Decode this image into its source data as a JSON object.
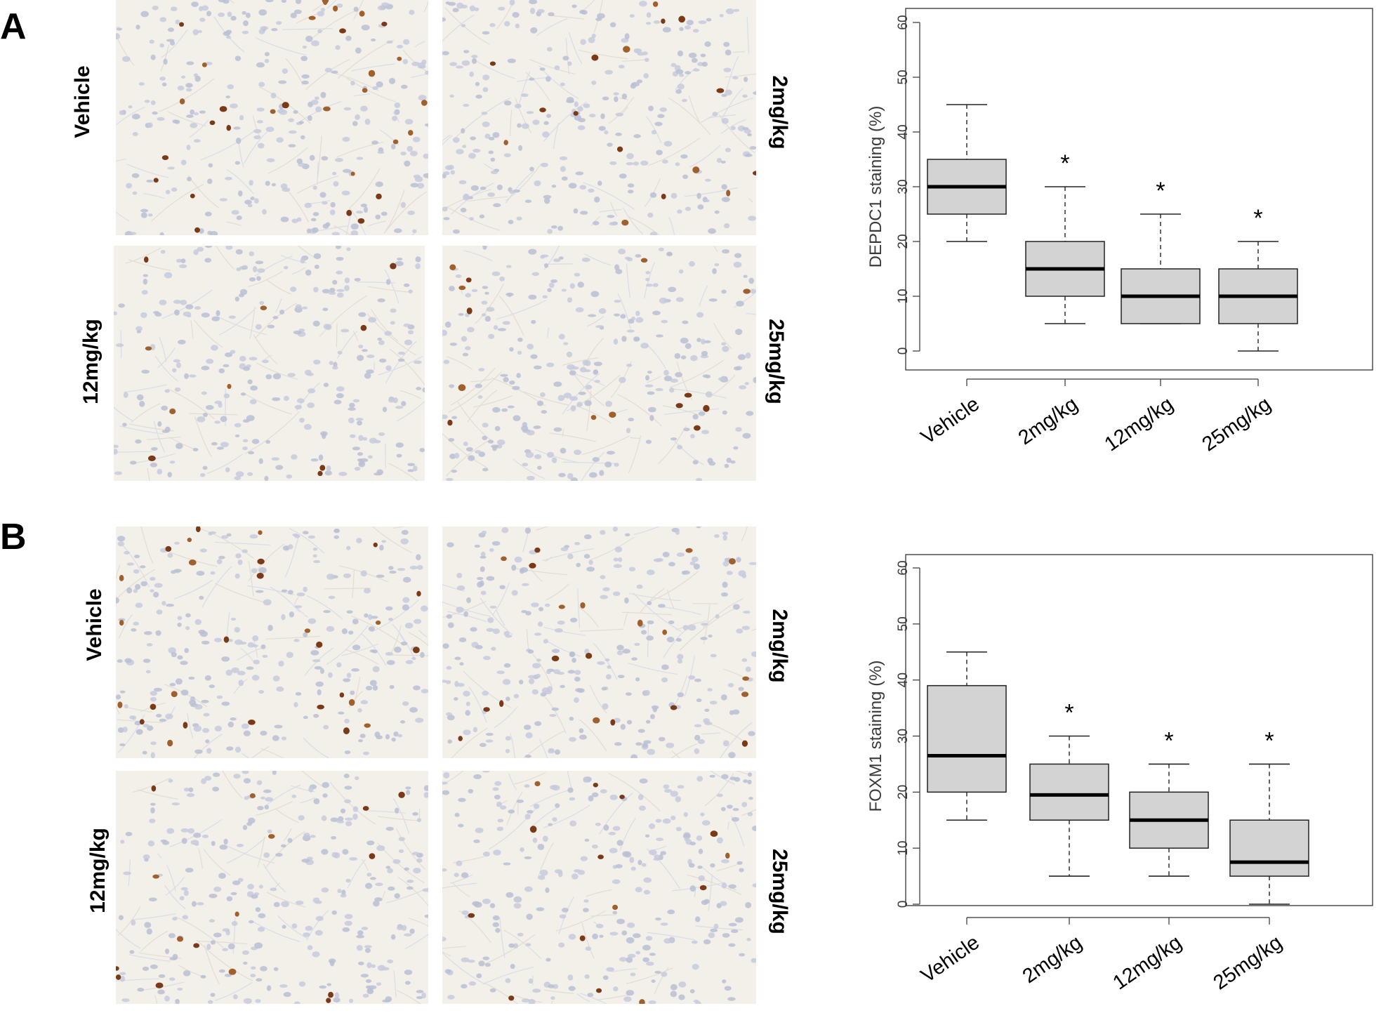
{
  "panels": [
    {
      "letter": "A",
      "image_labels": [
        "Vehicle",
        "2mg/kg",
        "12mg/kg",
        "25mg/kg"
      ],
      "chart_data": {
        "type": "box",
        "title": "",
        "xlabel": "",
        "ylabel": "DEPDC1 staining (%)",
        "ylim": [
          0,
          60
        ],
        "yticks": [
          0,
          10,
          20,
          30,
          40,
          50,
          60
        ],
        "categories": [
          "Vehicle",
          "2mg/kg",
          "12mg/kg",
          "25mg/kg"
        ],
        "boxes": [
          {
            "whisker_low": 20,
            "q1": 25,
            "median": 30,
            "q3": 35,
            "whisker_high": 45,
            "annotation": ""
          },
          {
            "whisker_low": 5,
            "q1": 10,
            "median": 15,
            "q3": 20,
            "whisker_high": 30,
            "annotation": "*"
          },
          {
            "whisker_low": 5,
            "q1": 5,
            "median": 10,
            "q3": 15,
            "whisker_high": 25,
            "annotation": "*"
          },
          {
            "whisker_low": 0,
            "q1": 5,
            "median": 10,
            "q3": 15,
            "whisker_high": 20,
            "annotation": "*"
          }
        ],
        "box_fill": "#d3d3d3"
      }
    },
    {
      "letter": "B",
      "image_labels": [
        "Vehicle",
        "2mg/kg",
        "12mg/kg",
        "25mg/kg"
      ],
      "chart_data": {
        "type": "box",
        "title": "",
        "xlabel": "",
        "ylabel": "FOXM1 staining (%)",
        "ylim": [
          0,
          60
        ],
        "yticks": [
          0,
          10,
          20,
          30,
          40,
          50,
          60
        ],
        "categories": [
          "Vehicle",
          "2mg/kg",
          "12mg/kg",
          "25mg/kg"
        ],
        "boxes": [
          {
            "whisker_low": 15,
            "q1": 20,
            "median": 26.5,
            "q3": 39,
            "whisker_high": 45,
            "annotation": ""
          },
          {
            "whisker_low": 5,
            "q1": 15,
            "median": 19.5,
            "q3": 25,
            "whisker_high": 30,
            "annotation": "*"
          },
          {
            "whisker_low": 5,
            "q1": 10,
            "median": 15,
            "q3": 20,
            "whisker_high": 25,
            "annotation": "*"
          },
          {
            "whisker_low": 0,
            "q1": 5,
            "median": 7.5,
            "q3": 15,
            "whisker_high": 25,
            "annotation": "*"
          }
        ],
        "box_fill": "#d3d3d3"
      }
    }
  ]
}
